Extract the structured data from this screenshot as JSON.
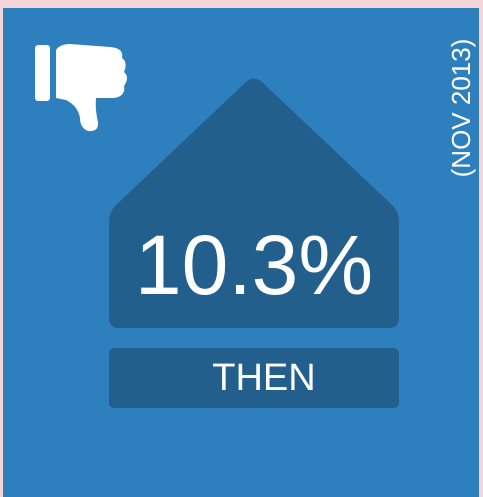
{
  "stat": {
    "value": "10.3%",
    "label": "THEN",
    "date": "(NOV 2013)"
  }
}
